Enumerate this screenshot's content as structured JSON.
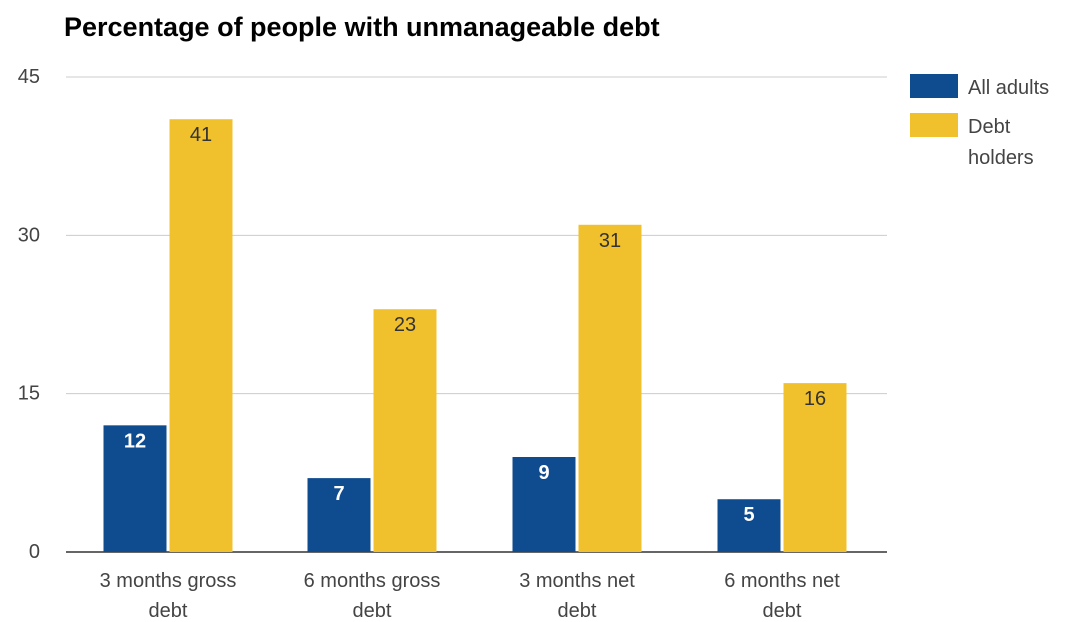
{
  "chart_data": {
    "type": "bar",
    "title": "Percentage of people with unmanageable debt",
    "categories": [
      [
        "3 months gross",
        "debt"
      ],
      [
        "6 months gross",
        "debt"
      ],
      [
        "3 months net",
        "debt"
      ],
      [
        "6 months net",
        "debt"
      ]
    ],
    "series": [
      {
        "name": "All adults",
        "values": [
          12,
          7,
          9,
          5
        ],
        "color": "#0f4c8f",
        "label_color": "#ffffff",
        "label_weight": "bold"
      },
      {
        "name": [
          "Debt",
          "holders"
        ],
        "values": [
          41,
          23,
          31,
          16
        ],
        "color": "#f0c02d",
        "label_color": "#333333",
        "label_weight": "normal"
      }
    ],
    "ylim": [
      0,
      45
    ],
    "yticks": [
      0,
      15,
      30,
      45
    ],
    "xlabel": "",
    "ylabel": "",
    "grid": true,
    "legend_position": "right"
  }
}
